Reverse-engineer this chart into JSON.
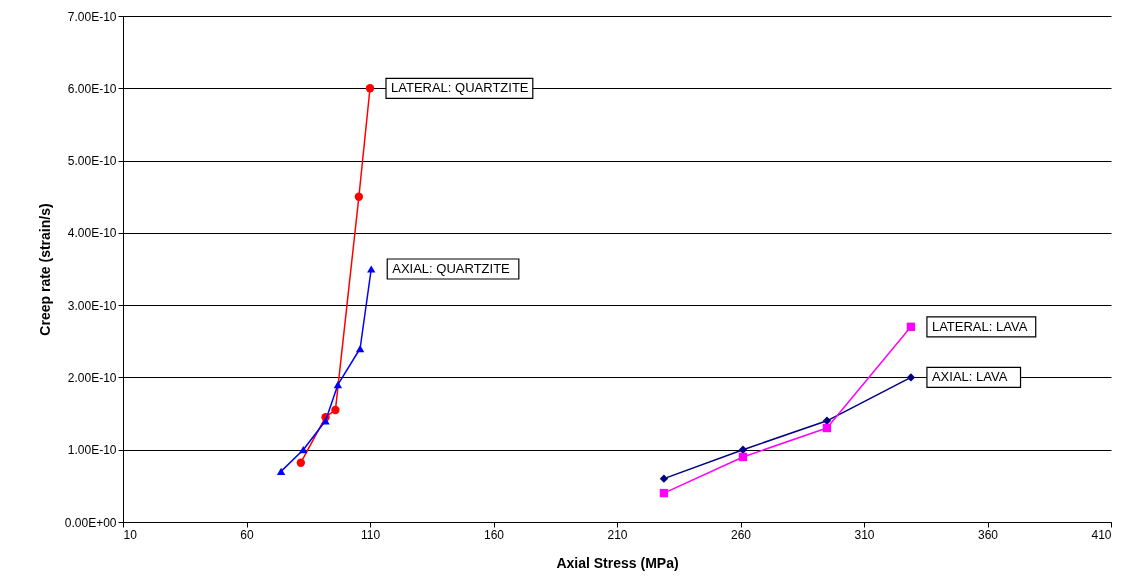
{
  "chart_data": {
    "type": "line",
    "xlabel": "Axial Stress (MPa)",
    "ylabel": "Creep rate (strain/s)",
    "xlim": [
      10,
      410
    ],
    "xticks": [
      10,
      60,
      110,
      160,
      210,
      260,
      310,
      360,
      410
    ],
    "ylim": [
      0,
      7e-10
    ],
    "yticks": [
      {
        "value": 0,
        "label": "0.00E+00"
      },
      {
        "value": 1e-10,
        "label": "1.00E-10"
      },
      {
        "value": 2e-10,
        "label": "2.00E-10"
      },
      {
        "value": 3e-10,
        "label": "3.00E-10"
      },
      {
        "value": 4e-10,
        "label": "4.00E-10"
      },
      {
        "value": 5e-10,
        "label": "5.00E-10"
      },
      {
        "value": 6e-10,
        "label": "6.00E-10"
      },
      {
        "value": 7e-10,
        "label": "7.00E-10"
      }
    ],
    "grid": "y",
    "line_style": "solid",
    "series": [
      {
        "name": "LATERAL: QUARTZITE",
        "color": "#ff0000",
        "marker": "circle",
        "x": [
          82,
          92,
          96,
          105.5,
          110
        ],
        "values": [
          8.2e-11,
          1.45e-10,
          1.55e-10,
          4.5e-10,
          6e-10
        ]
      },
      {
        "name": "AXIAL: QUARTZITE",
        "color": "#0000ff",
        "marker": "triangle",
        "x": [
          74,
          83,
          92,
          97,
          106,
          110.5
        ],
        "values": [
          7e-11,
          1e-10,
          1.4e-10,
          1.9e-10,
          2.4e-10,
          3.5e-10
        ]
      },
      {
        "name": "AXIAL: LAVA",
        "color": "#000080",
        "marker": "diamond",
        "x": [
          229,
          261,
          295,
          329
        ],
        "values": [
          6e-11,
          1e-10,
          1.4e-10,
          2e-10
        ]
      },
      {
        "name": "LATERAL: LAVA",
        "color": "#ff00ff",
        "marker": "square",
        "x": [
          229,
          261,
          295,
          329
        ],
        "values": [
          4e-11,
          9e-11,
          1.3e-10,
          2.7e-10
        ]
      }
    ]
  }
}
